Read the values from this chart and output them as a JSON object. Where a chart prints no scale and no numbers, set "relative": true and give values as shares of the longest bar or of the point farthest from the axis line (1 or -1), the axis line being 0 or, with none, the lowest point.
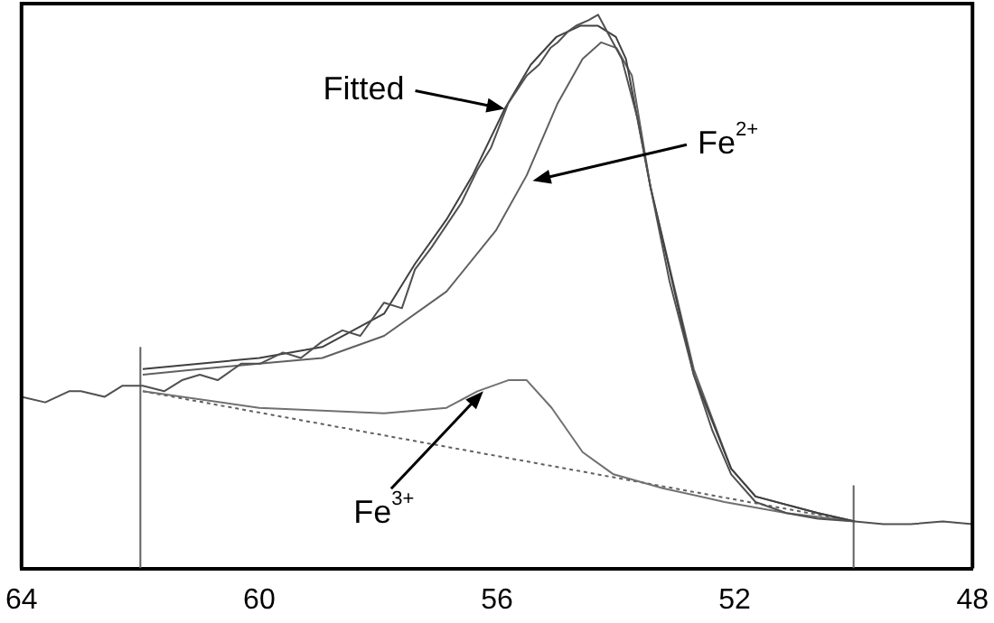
{
  "chart_data": {
    "type": "line",
    "relative": true,
    "xlim": [
      64,
      48
    ],
    "xticks": [
      64,
      60,
      56,
      52,
      48
    ],
    "legend": false,
    "grid": false,
    "marker": "none",
    "tick_labels": "x",
    "series": [
      {
        "color": "#505050",
        "line_style": "solid",
        "x": [
          64,
          63.6,
          63.2,
          63,
          62.6,
          62.3,
          61.96,
          61.6,
          61.3,
          61,
          60.7,
          60.3,
          59.98,
          59.6,
          59.3,
          58.94,
          58.6,
          58.3,
          57.9,
          57.6,
          57.38,
          57.1,
          56.85,
          56.6,
          56.33,
          56.1,
          55.81,
          55.5,
          55.29,
          55.1,
          54.98,
          54.8,
          54.67,
          54.46,
          54.3,
          54.15,
          53.9,
          53.63,
          53.42,
          53.1,
          52.69,
          52.38,
          52.06,
          51.65,
          51.13,
          50.6,
          49.98,
          49.5,
          49.04,
          48.5,
          48
        ],
        "values": [
          0.31,
          0.3,
          0.32,
          0.32,
          0.31,
          0.33,
          0.33,
          0.32,
          0.34,
          0.35,
          0.34,
          0.37,
          0.37,
          0.39,
          0.38,
          0.41,
          0.43,
          0.42,
          0.48,
          0.47,
          0.54,
          0.58,
          0.62,
          0.66,
          0.72,
          0.76,
          0.84,
          0.89,
          0.91,
          0.94,
          0.95,
          0.97,
          0.98,
          0.99,
          1.0,
          0.97,
          0.92,
          0.81,
          0.69,
          0.52,
          0.35,
          0.25,
          0.17,
          0.12,
          0.1,
          0.09,
          0.085,
          0.08,
          0.08,
          0.085,
          0.08
        ]
      },
      {
        "color": "#404040",
        "line_style": "solid",
        "x": [
          61.96,
          61,
          60,
          58.94,
          57.9,
          57.38,
          56.85,
          56.41,
          55.87,
          55.43,
          55,
          54.6,
          54.3,
          54.0,
          53.83,
          53.42,
          52.69,
          52.06,
          51.65,
          50.6,
          49.98
        ],
        "values": [
          0.36,
          0.37,
          0.38,
          0.4,
          0.46,
          0.55,
          0.63,
          0.71,
          0.83,
          0.91,
          0.96,
          0.98,
          0.98,
          0.96,
          0.92,
          0.69,
          0.35,
          0.18,
          0.13,
          0.1,
          0.085
        ]
      },
      {
        "color": "#606060",
        "line_style": "solid",
        "x": [
          61.96,
          61,
          60,
          58.94,
          57.9,
          56.85,
          56.02,
          55.5,
          54.98,
          54.56,
          54.25,
          53.99,
          53.73,
          53.42,
          52.69,
          52.06,
          51.65,
          50.6,
          49.98
        ],
        "values": [
          0.35,
          0.36,
          0.37,
          0.38,
          0.42,
          0.5,
          0.61,
          0.71,
          0.84,
          0.92,
          0.95,
          0.94,
          0.89,
          0.69,
          0.36,
          0.18,
          0.13,
          0.1,
          0.085
        ]
      },
      {
        "color": "#707070",
        "line_style": "solid",
        "x": [
          61.96,
          60,
          57.9,
          56.85,
          56.33,
          55.81,
          55.5,
          55.08,
          54.56,
          54.04,
          53.21,
          52.17,
          51.13,
          49.98
        ],
        "values": [
          0.32,
          0.29,
          0.28,
          0.29,
          0.32,
          0.34,
          0.34,
          0.29,
          0.21,
          0.17,
          0.145,
          0.12,
          0.1,
          0.085
        ]
      },
      {
        "color": "#606060",
        "line_style": "dotted",
        "x": [
          61.96,
          49.98
        ],
        "values": [
          0.32,
          0.085
        ]
      },
      {
        "color": "#606060",
        "line_style": "solid",
        "x": [
          62,
          62
        ],
        "values": [
          0,
          0.4
        ]
      },
      {
        "color": "#606060",
        "line_style": "solid",
        "x": [
          50,
          50
        ],
        "values": [
          0,
          0.15
        ]
      }
    ],
    "annotations": [
      {
        "text": "Fitted",
        "x": 55.87,
        "y": 0.83
      },
      {
        "text": "Fe$^{2+}$",
        "x": 55.4,
        "y": 0.7
      },
      {
        "text": "Fe$^{3+}$",
        "x": 56.23,
        "y": 0.32
      }
    ]
  }
}
